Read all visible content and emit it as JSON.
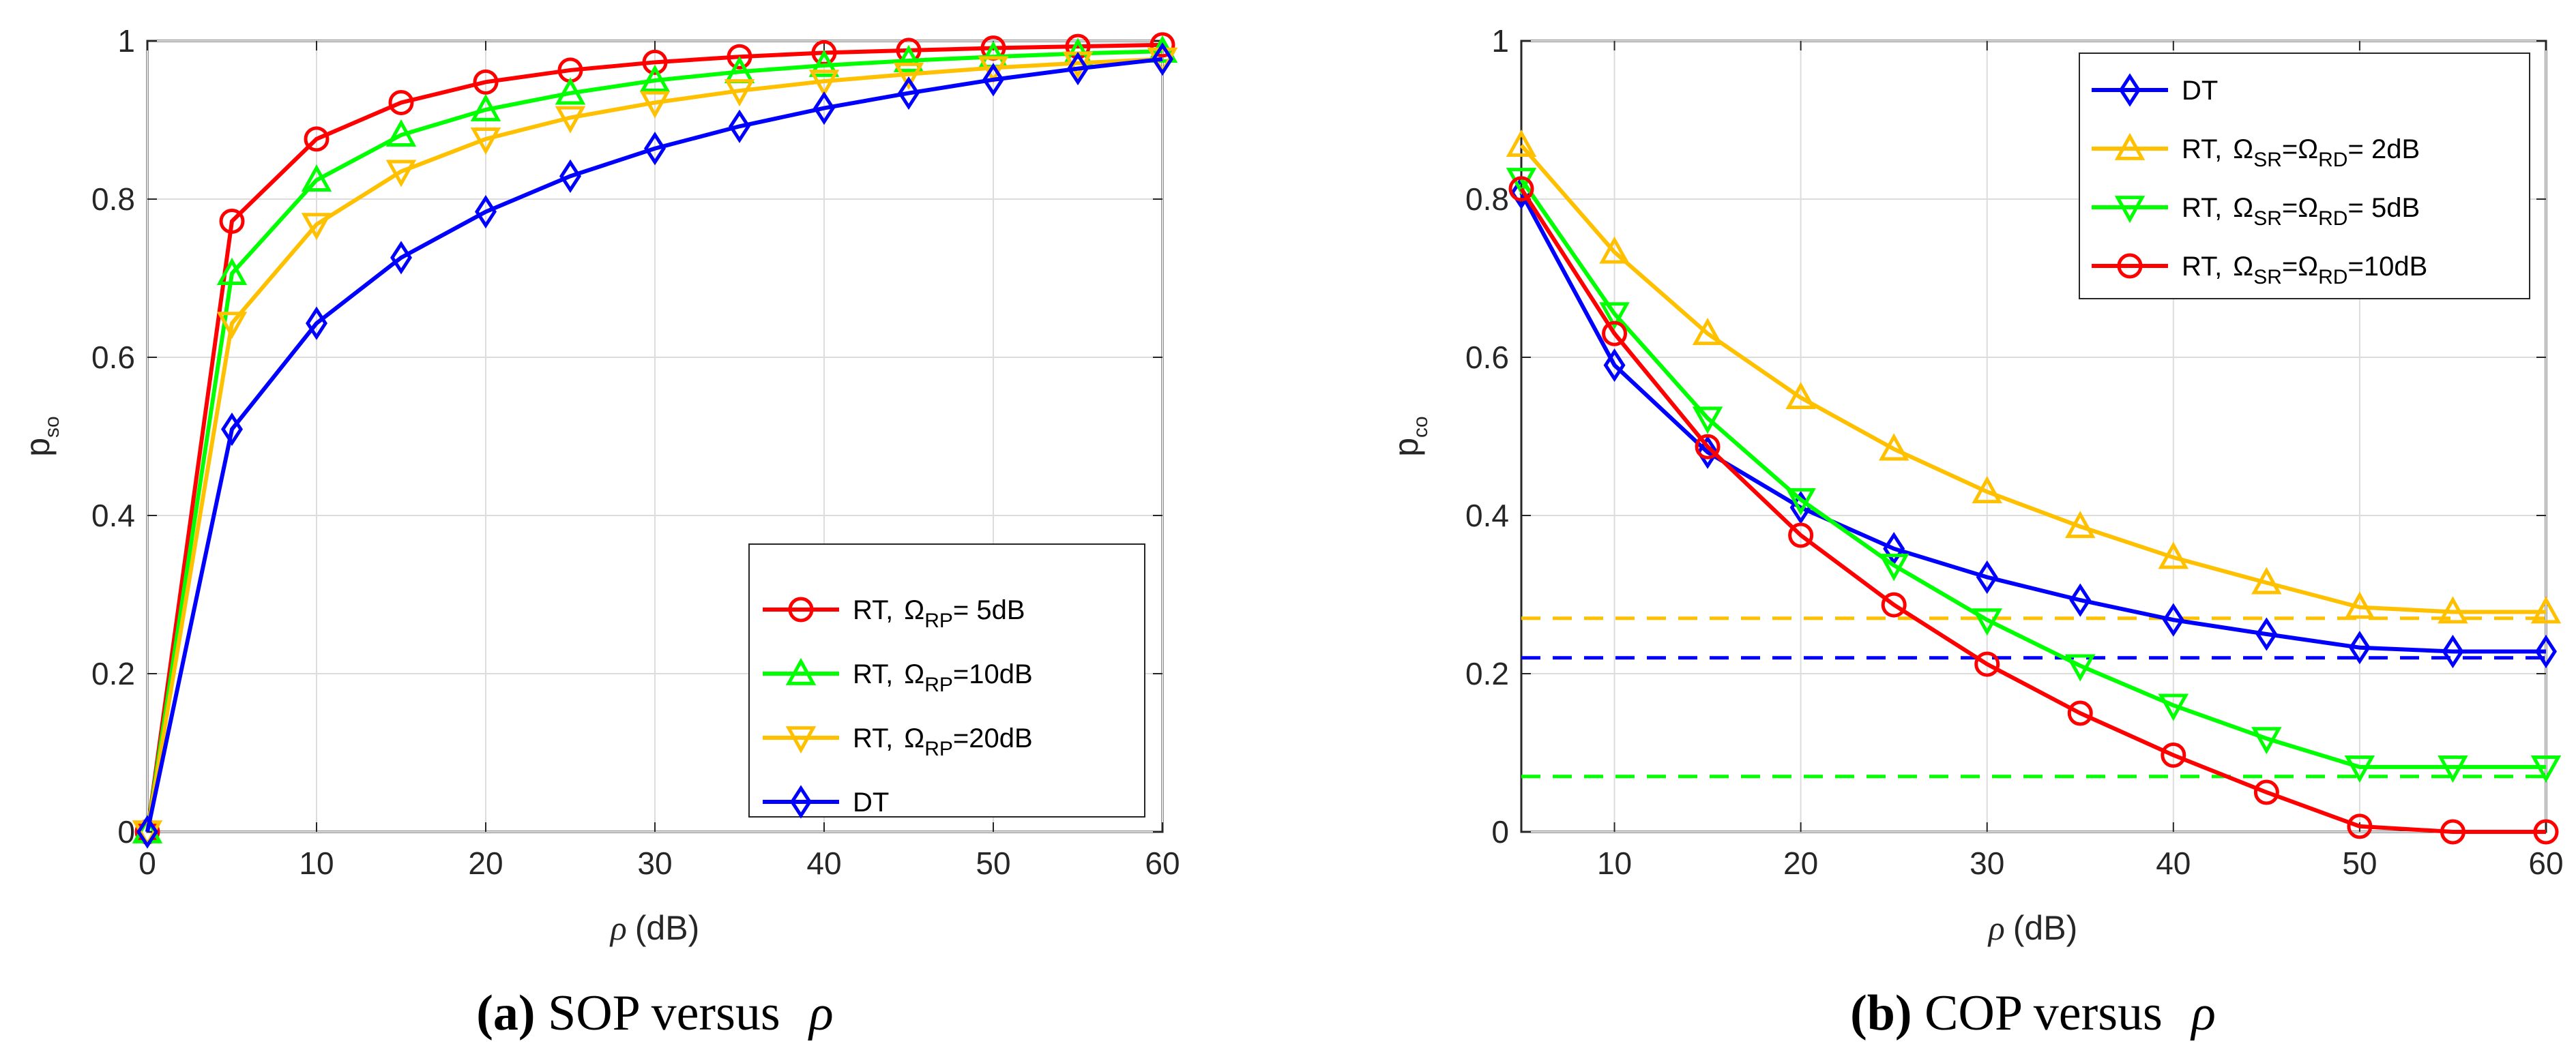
{
  "chart_data": [
    {
      "type": "line",
      "id": "a",
      "xlabel": "(dB)",
      "xlabel_symbol": "ρ",
      "ylabel": "p",
      "ylabel_sub": "so",
      "xlim": [
        0,
        60
      ],
      "ylim": [
        0,
        1
      ],
      "xticks": [
        "0",
        "10",
        "20",
        "30",
        "40",
        "50",
        "60"
      ],
      "yticks": [
        "0",
        "0.2",
        "0.4",
        "0.6",
        "0.8",
        "1"
      ],
      "grid": true,
      "legend_position": "bottom-right",
      "caption": {
        "bold": "(a)",
        "text": " SOP versus ",
        "symbol": "ρ"
      },
      "x": [
        0,
        5,
        10,
        15,
        20,
        25,
        30,
        35,
        40,
        45,
        50,
        55,
        60
      ],
      "series": [
        {
          "label": "RT,",
          "omega_sub": "RP",
          "suffix": "= 5dB",
          "color": "#ff0000",
          "marker": "circle",
          "values": [
            0,
            0.772,
            0.876,
            0.922,
            0.948,
            0.963,
            0.973,
            0.98,
            0.985,
            0.988,
            0.991,
            0.993,
            0.995
          ]
        },
        {
          "label": "RT,",
          "omega_sub": "RP",
          "suffix": "=10dB",
          "color": "#00ff00",
          "marker": "triangle-up",
          "values": [
            0,
            0.706,
            0.824,
            0.881,
            0.913,
            0.934,
            0.95,
            0.961,
            0.969,
            0.975,
            0.98,
            0.984,
            0.987
          ]
        },
        {
          "label": "RT,",
          "omega_sub": "RP",
          "suffix": "=20dB",
          "color": "#ffc000",
          "marker": "triangle-down",
          "values": [
            0,
            0.643,
            0.768,
            0.835,
            0.876,
            0.903,
            0.922,
            0.937,
            0.949,
            0.958,
            0.966,
            0.972,
            0.977
          ]
        },
        {
          "label": "DT",
          "color": "#0000ff",
          "marker": "diamond",
          "values": [
            0,
            0.509,
            0.643,
            0.726,
            0.784,
            0.829,
            0.864,
            0.892,
            0.915,
            0.934,
            0.951,
            0.965,
            0.977
          ]
        }
      ]
    },
    {
      "type": "line",
      "id": "b",
      "xlabel": "(dB)",
      "xlabel_symbol": "ρ",
      "ylabel": "p",
      "ylabel_sub": "co",
      "xlim": [
        5,
        60
      ],
      "ylim": [
        0,
        1
      ],
      "xticks": [
        "10",
        "20",
        "30",
        "40",
        "50",
        "60"
      ],
      "yticks": [
        "0",
        "0.2",
        "0.4",
        "0.6",
        "0.8",
        "1"
      ],
      "grid": true,
      "legend_position": "top-right",
      "caption": {
        "bold": "(b)",
        "text": " COP versus ",
        "symbol": "ρ"
      },
      "x": [
        5,
        10,
        15,
        20,
        25,
        30,
        35,
        40,
        45,
        50,
        55,
        60
      ],
      "series": [
        {
          "label": "DT",
          "color": "#0000ff",
          "marker": "diamond",
          "values": [
            0.808,
            0.59,
            0.48,
            0.41,
            0.358,
            0.322,
            0.293,
            0.268,
            0.25,
            0.233,
            0.228,
            0.228
          ]
        },
        {
          "label": "RT,",
          "omega_sub": "SR",
          "omega2_sub": "RD",
          "suffix": "= 2dB",
          "color": "#ffc000",
          "marker": "triangle-up",
          "values": [
            0.868,
            0.733,
            0.63,
            0.549,
            0.484,
            0.43,
            0.386,
            0.347,
            0.315,
            0.284,
            0.278,
            0.278
          ]
        },
        {
          "label": "RT,",
          "omega_sub": "SR",
          "omega2_sub": "RD",
          "suffix": "= 5dB",
          "color": "#00ff00",
          "marker": "triangle-down",
          "values": [
            0.825,
            0.655,
            0.523,
            0.42,
            0.337,
            0.268,
            0.21,
            0.16,
            0.118,
            0.082,
            0.082,
            0.082
          ]
        },
        {
          "label": "RT,",
          "omega_sub": "SR",
          "omega2_sub": "RD",
          "suffix": "=10dB",
          "color": "#ff0000",
          "marker": "circle",
          "values": [
            0.813,
            0.63,
            0.487,
            0.375,
            0.287,
            0.212,
            0.15,
            0.097,
            0.05,
            0.007,
            0.0,
            0.0
          ]
        }
      ],
      "asymptotes": [
        {
          "value": 0.27,
          "color": "#ffc000"
        },
        {
          "value": 0.22,
          "color": "#0000ff"
        },
        {
          "value": 0.07,
          "color": "#00ff00"
        }
      ]
    }
  ]
}
